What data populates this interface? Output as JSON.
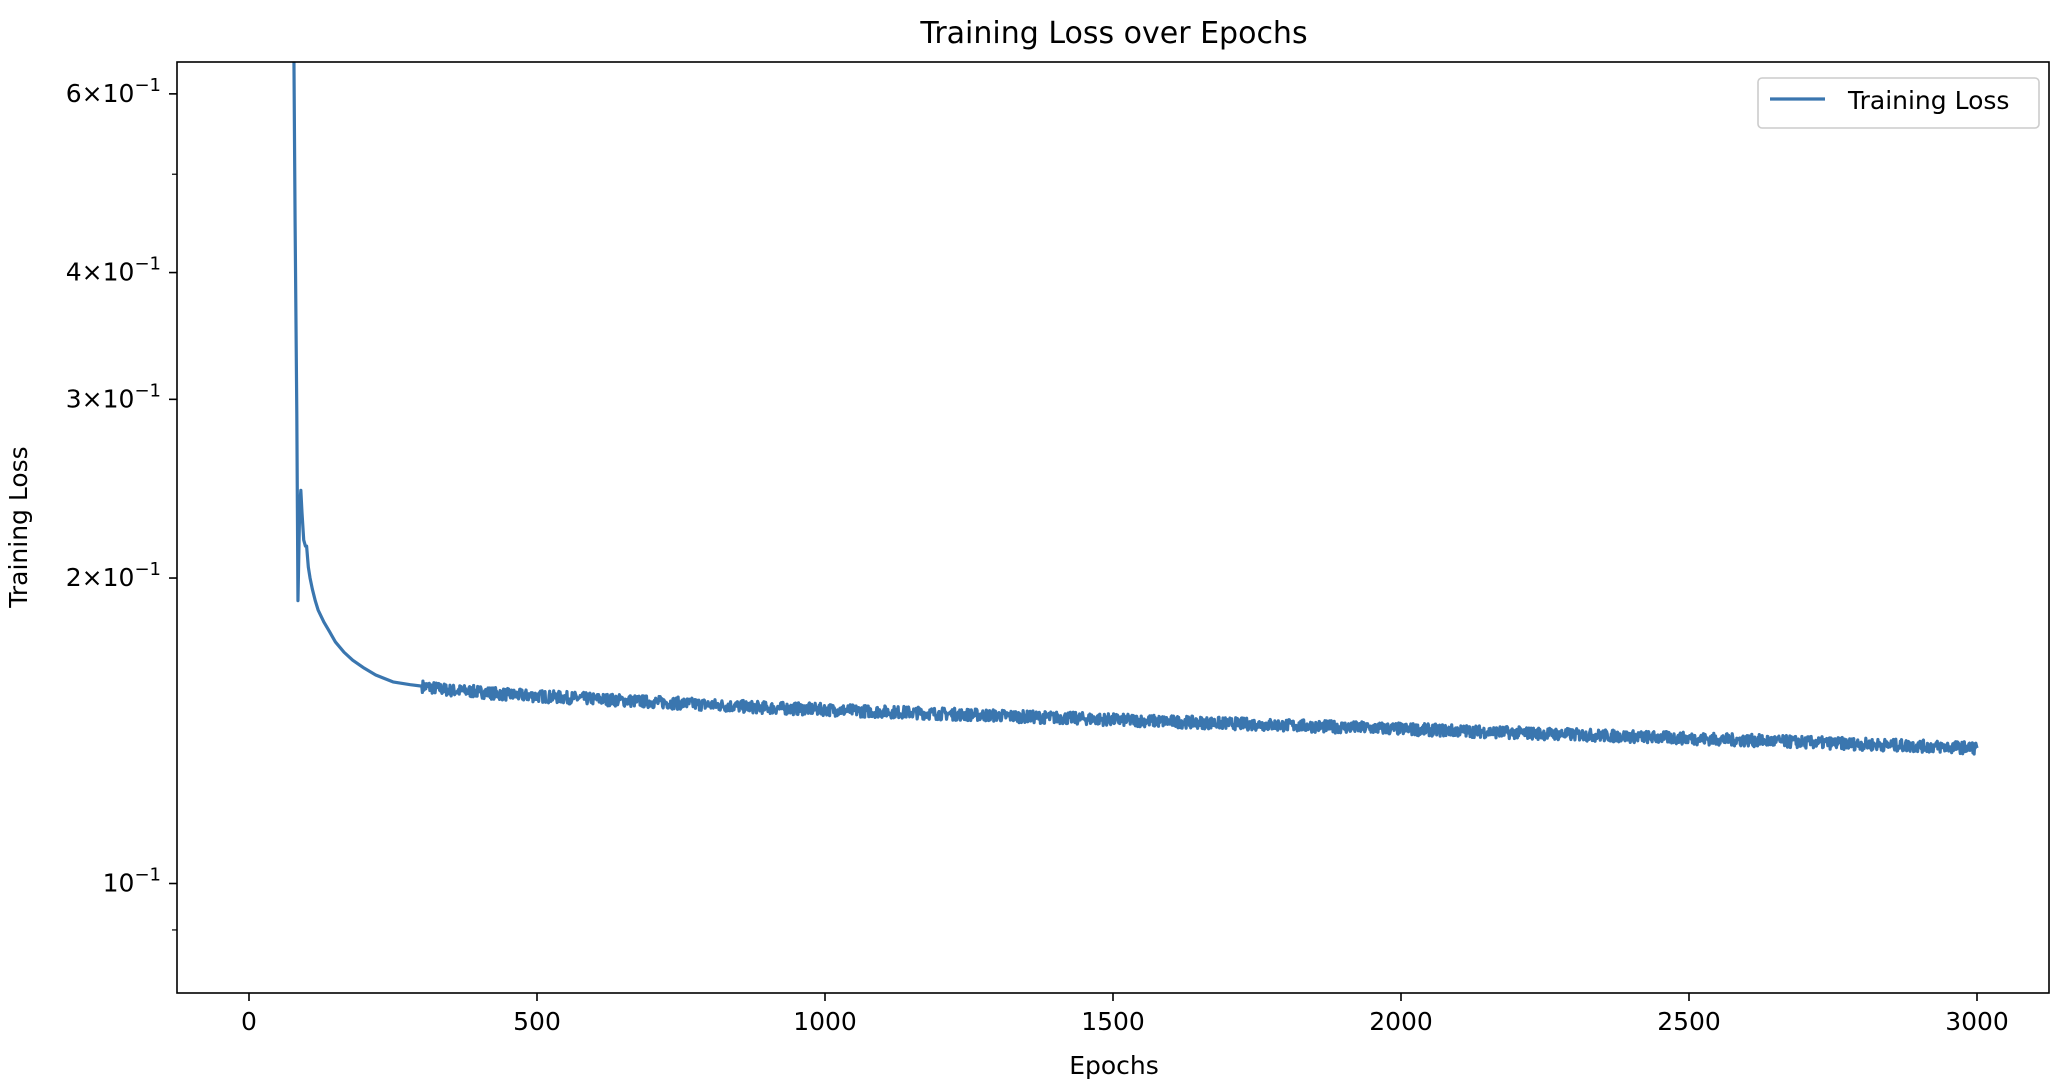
{
  "chart_data": {
    "type": "line",
    "title": "Training Loss over Epochs",
    "xlabel": "Epochs",
    "ylabel": "Training Loss",
    "yscale": "log",
    "xlim": [
      -125,
      3125
    ],
    "ylim": [
      0.078,
      0.645
    ],
    "x_ticks": [
      0,
      500,
      1000,
      1500,
      2000,
      2500,
      3000
    ],
    "x_tick_labels": [
      "0",
      "500",
      "1000",
      "1500",
      "2000",
      "2500",
      "3000"
    ],
    "y_major_ticks": [
      {
        "value": 0.1,
        "mantissa": "",
        "exponent": "−1"
      },
      {
        "value": 0.2,
        "mantissa": "2",
        "exponent": "−1"
      },
      {
        "value": 0.3,
        "mantissa": "3",
        "exponent": "−1"
      },
      {
        "value": 0.4,
        "mantissa": "4",
        "exponent": "−1"
      },
      {
        "value": 0.6,
        "mantissa": "6",
        "exponent": "−1"
      }
    ],
    "y_minor_ticks": [
      0.09,
      0.5
    ],
    "grid": false,
    "legend_position": "top-right",
    "series": [
      {
        "name": "Training Loss",
        "color": "#3a76af",
        "x": [
          78,
          80,
          83,
          85,
          88,
          90,
          92,
          95,
          98,
          100,
          103,
          106,
          110,
          115,
          120,
          130,
          140,
          150,
          165,
          180,
          200,
          220,
          250,
          280,
          300,
          350,
          400,
          450,
          500,
          550,
          600,
          650,
          700,
          750,
          800,
          850,
          900,
          950,
          1000,
          1050,
          1100,
          1150,
          1200,
          1250,
          1300,
          1350,
          1400,
          1450,
          1500,
          1550,
          1600,
          1650,
          1700,
          1750,
          1800,
          1850,
          1900,
          1950,
          2000,
          2050,
          2100,
          2150,
          2200,
          2250,
          2300,
          2350,
          2400,
          2450,
          2500,
          2550,
          2600,
          2650,
          2700,
          2750,
          2800,
          2850,
          2900,
          2950,
          3000
        ],
        "y": [
          0.65,
          0.45,
          0.29,
          0.19,
          0.235,
          0.244,
          0.232,
          0.218,
          0.215,
          0.215,
          0.205,
          0.2,
          0.195,
          0.19,
          0.186,
          0.181,
          0.177,
          0.173,
          0.169,
          0.166,
          0.163,
          0.1605,
          0.158,
          0.157,
          0.1565,
          0.155,
          0.1545,
          0.1535,
          0.153,
          0.1525,
          0.152,
          0.1515,
          0.151,
          0.1505,
          0.15,
          0.1495,
          0.149,
          0.1487,
          0.1484,
          0.148,
          0.1477,
          0.1474,
          0.147,
          0.1467,
          0.1464,
          0.146,
          0.1457,
          0.1454,
          0.145,
          0.1447,
          0.1444,
          0.1441,
          0.1438,
          0.1435,
          0.1432,
          0.1429,
          0.1426,
          0.1423,
          0.142,
          0.1417,
          0.1414,
          0.1411,
          0.1408,
          0.1405,
          0.1402,
          0.1399,
          0.1396,
          0.1393,
          0.139,
          0.1387,
          0.1384,
          0.1381,
          0.1378,
          0.1375,
          0.1372,
          0.1369,
          0.1366,
          0.1363,
          0.136
        ]
      }
    ]
  }
}
